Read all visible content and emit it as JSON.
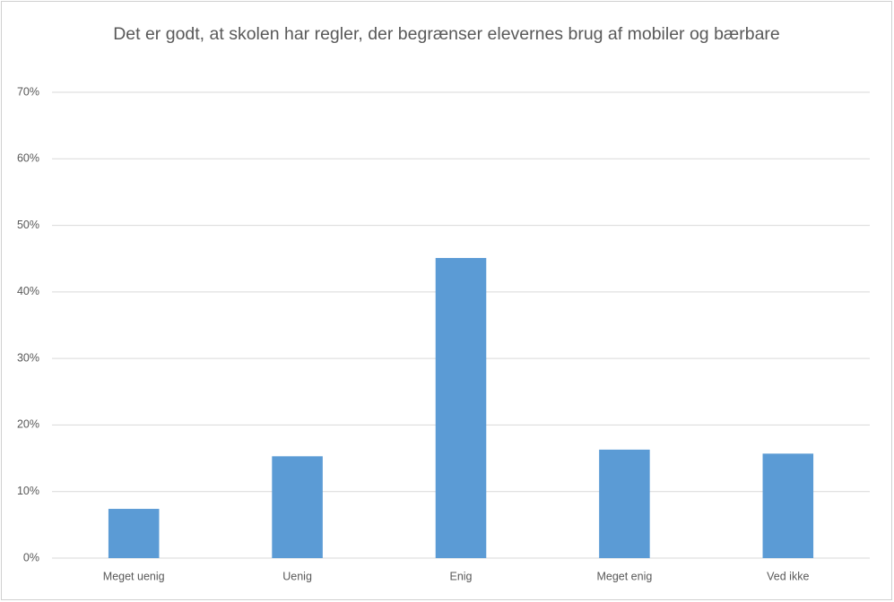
{
  "chart_data": {
    "type": "bar",
    "title": "Det er godt, at skolen har regler, der begrænser elevernes brug af mobiler og bærbare",
    "categories": [
      "Meget uenig",
      "Uenig",
      "Enig",
      "Meget enig",
      "Ved ikke"
    ],
    "values": [
      7.4,
      15.3,
      45.1,
      16.3,
      15.7
    ],
    "color": "#5b9bd5",
    "ylim": [
      0,
      70
    ],
    "yticks": [
      {
        "value": 0,
        "label": "0%"
      },
      {
        "value": 10,
        "label": "10%"
      },
      {
        "value": 20,
        "label": "20%"
      },
      {
        "value": 30,
        "label": "30%"
      },
      {
        "value": 40,
        "label": "40%"
      },
      {
        "value": 50,
        "label": "50%"
      },
      {
        "value": 60,
        "label": "60%"
      },
      {
        "value": 70,
        "label": "70%"
      }
    ],
    "grid": true
  }
}
